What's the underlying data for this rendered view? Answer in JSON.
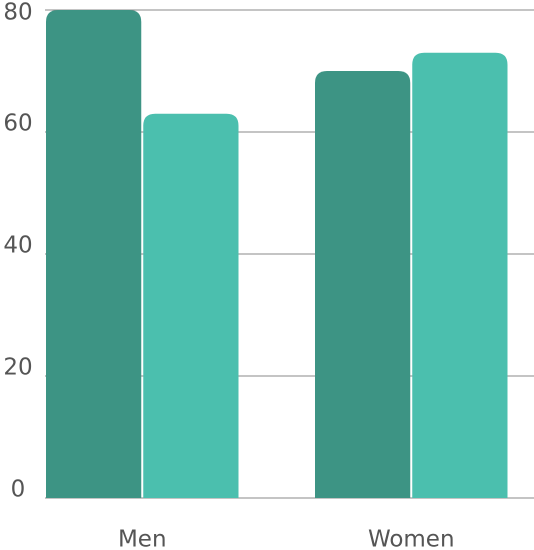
{
  "chart_data": {
    "type": "bar",
    "categories": [
      "Men",
      "Women"
    ],
    "series": [
      {
        "color": "#3d9484",
        "values": [
          80,
          70
        ]
      },
      {
        "color": "#4bbfae",
        "values": [
          63,
          73
        ]
      }
    ],
    "ylim": [
      0,
      80
    ],
    "yticks": [
      0,
      20,
      40,
      60,
      80
    ],
    "grid": true
  }
}
